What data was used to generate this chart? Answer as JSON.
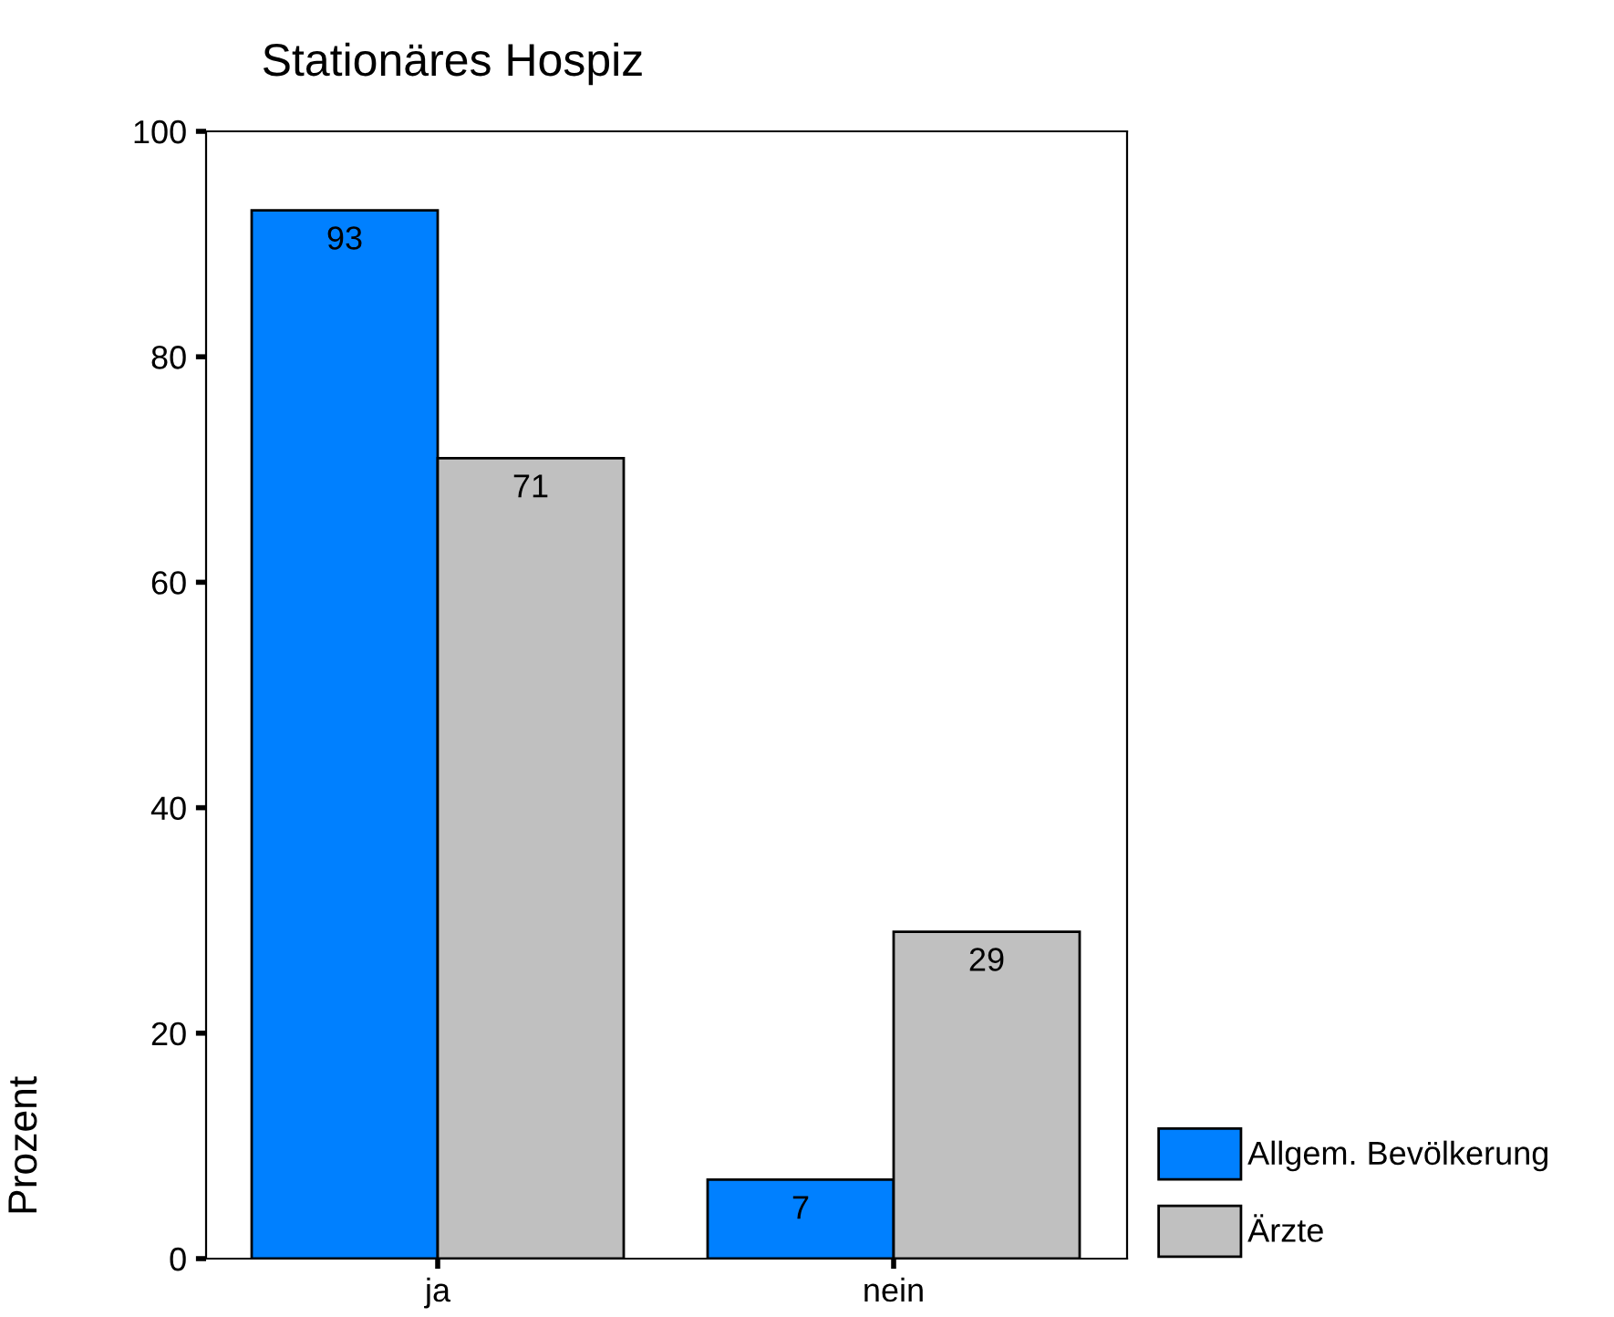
{
  "chart_data": {
    "type": "bar",
    "title": "Stationäres Hospiz",
    "ylabel": "Prozent",
    "categories": [
      "ja",
      "nein"
    ],
    "series": [
      {
        "name": "Allgem. Bevölkerung",
        "color": "#0080ff",
        "values": [
          93,
          7
        ]
      },
      {
        "name": "Ärzte",
        "color": "#c0c0c0",
        "values": [
          71,
          29
        ]
      }
    ],
    "ylim": [
      0,
      100
    ],
    "yticks": [
      0,
      20,
      40,
      60,
      80,
      100
    ],
    "data_labels": true,
    "grid": false,
    "legend": "bottom right"
  }
}
